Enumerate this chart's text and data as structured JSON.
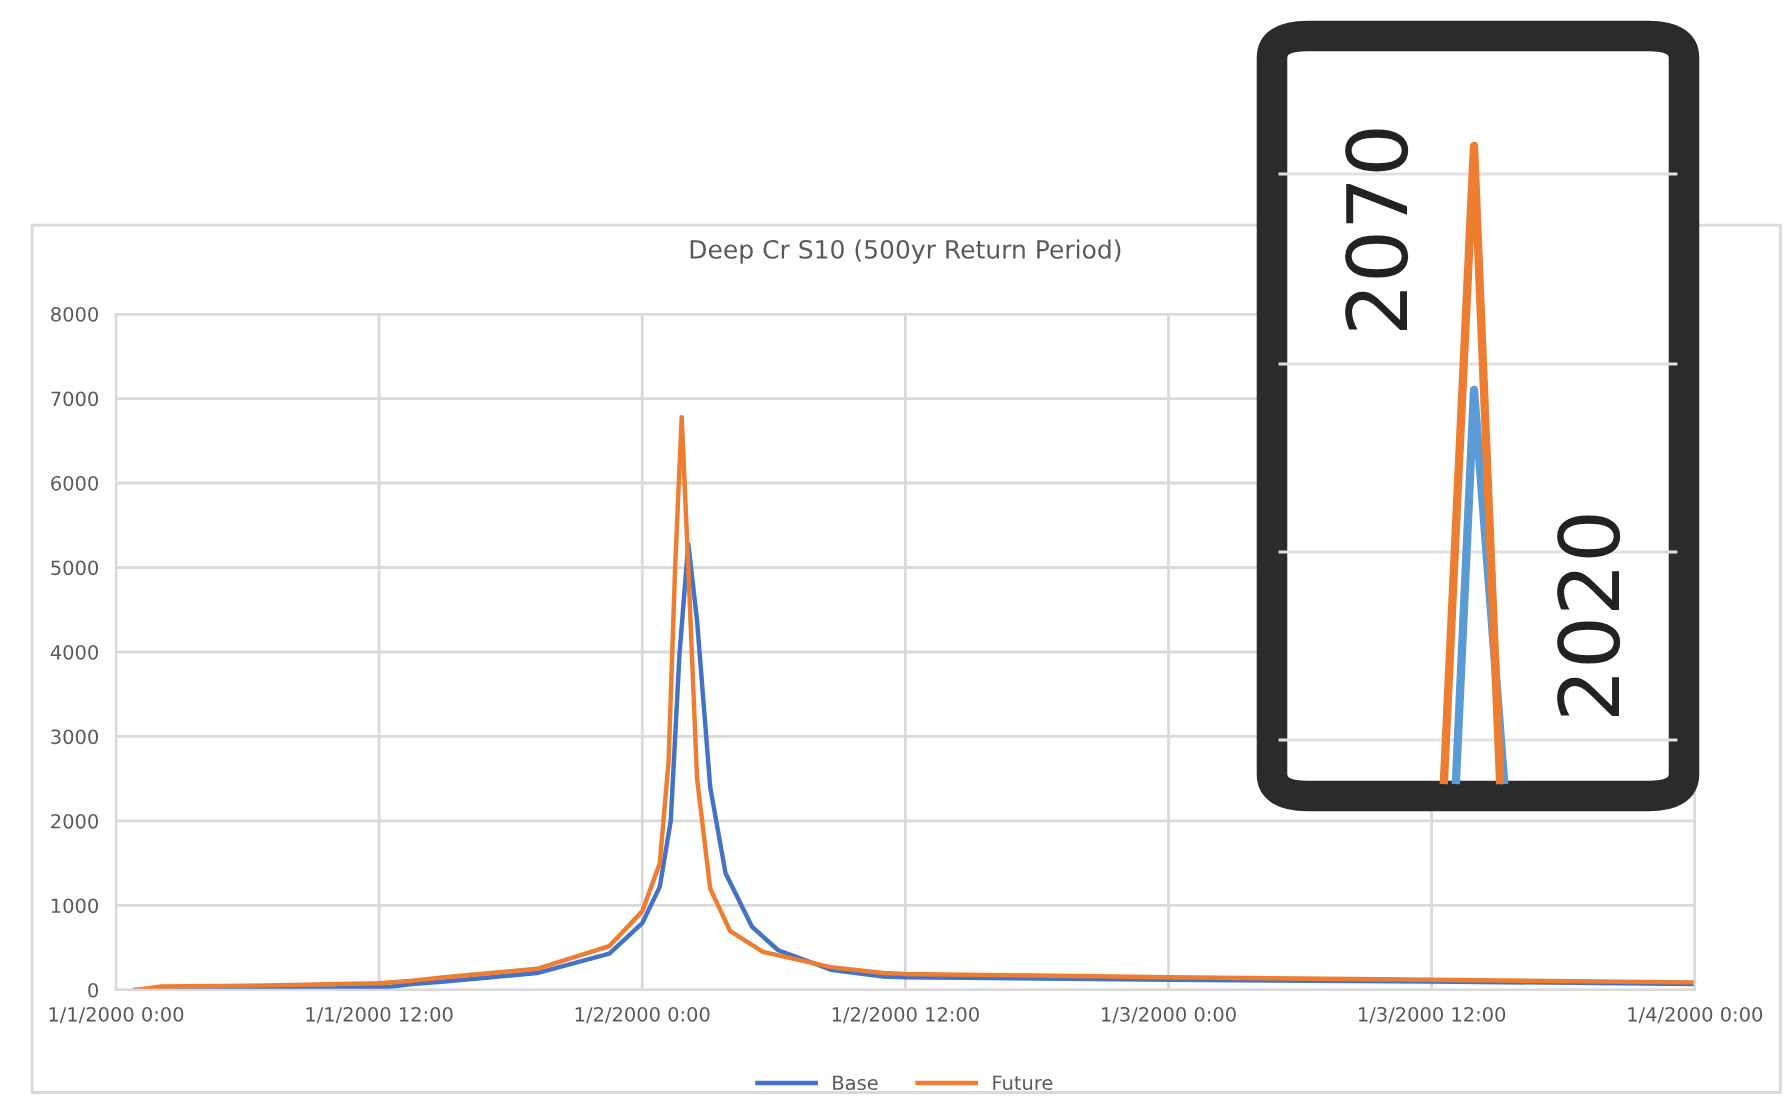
{
  "chart_data": {
    "type": "line",
    "title": "Deep Cr S10 (500yr Return Period)",
    "xlim": [
      "2000-01-01T00:00",
      "2000-01-04T00:00"
    ],
    "xticks": [
      {
        "value": "2000-01-01T00:00",
        "label": "1/1/2000 0:00"
      },
      {
        "value": "2000-01-01T12:00",
        "label": "1/1/2000 12:00"
      },
      {
        "value": "2000-01-02T00:00",
        "label": "1/2/2000 0:00"
      },
      {
        "value": "2000-01-02T12:00",
        "label": "1/2/2000 12:00"
      },
      {
        "value": "2000-01-03T00:00",
        "label": "1/3/2000 0:00"
      },
      {
        "value": "2000-01-03T12:00",
        "label": "1/3/2000 12:00"
      },
      {
        "value": "2000-01-04T00:00",
        "label": "1/4/2000 0:00"
      }
    ],
    "ylim": [
      0,
      8000
    ],
    "yticks": [
      0,
      1000,
      2000,
      3000,
      4000,
      5000,
      6000,
      7000,
      8000
    ],
    "grid": true,
    "legend": "bottom",
    "marker": "none",
    "line_style": "solid",
    "series": [
      {
        "name": "Base",
        "color": "#4472c4",
        "x": [
          "2000-01-01T00:54",
          "2000-01-01T03:00",
          "2000-01-01T10:00",
          "2000-01-01T12:36",
          "2000-01-01T13:30",
          "2000-01-01T15:00",
          "2000-01-01T19:12",
          "2000-01-01T22:30",
          "2000-01-02T00:00",
          "2000-01-02T00:48",
          "2000-01-02T01:18",
          "2000-01-02T01:42",
          "2000-01-02T02:06",
          "2000-01-02T02:30",
          "2000-01-02T03:06",
          "2000-01-02T03:48",
          "2000-01-02T05:00",
          "2000-01-02T06:12",
          "2000-01-02T08:36",
          "2000-01-02T11:00",
          "2000-01-02T12:00",
          "2000-01-03T00:00",
          "2000-01-03T12:00",
          "2000-01-04T00:00"
        ],
        "values": [
          0,
          10,
          20,
          40,
          70,
          100,
          200,
          430,
          790,
          1220,
          2000,
          3980,
          5280,
          4370,
          2400,
          1380,
          750,
          470,
          240,
          160,
          150,
          120,
          100,
          70
        ]
      },
      {
        "name": "Future",
        "color": "#ed7d31",
        "x": [
          "2000-01-01T00:54",
          "2000-01-01T02:00",
          "2000-01-01T06:00",
          "2000-01-01T12:00",
          "2000-01-01T13:30",
          "2000-01-01T15:00",
          "2000-01-01T19:12",
          "2000-01-01T22:30",
          "2000-01-02T00:00",
          "2000-01-02T00:48",
          "2000-01-02T01:12",
          "2000-01-02T01:30",
          "2000-01-02T01:48",
          "2000-01-02T02:06",
          "2000-01-02T02:30",
          "2000-01-02T03:06",
          "2000-01-02T04:00",
          "2000-01-02T05:30",
          "2000-01-02T08:36",
          "2000-01-02T11:00",
          "2000-01-02T12:00",
          "2000-01-03T00:00",
          "2000-01-03T12:00",
          "2000-01-04T00:00"
        ],
        "values": [
          0,
          40,
          50,
          80,
          110,
          150,
          250,
          520,
          930,
          1500,
          2700,
          5000,
          6780,
          5000,
          2500,
          1200,
          700,
          450,
          270,
          200,
          190,
          150,
          120,
          90
        ]
      }
    ],
    "annotations": [
      "2070",
      "2020"
    ]
  }
}
